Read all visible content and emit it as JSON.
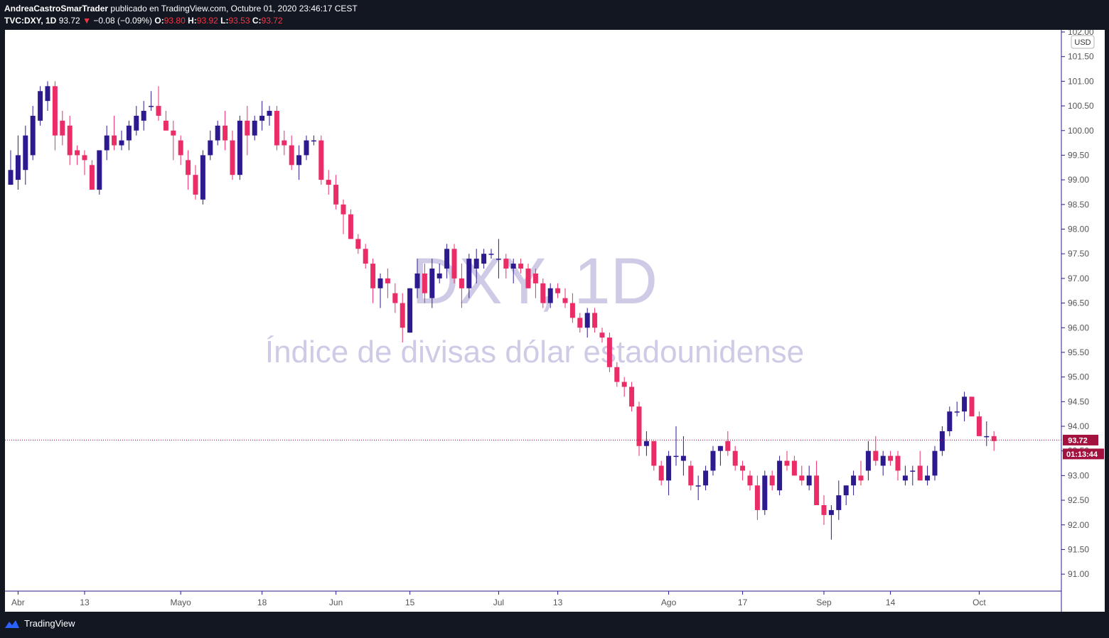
{
  "header": {
    "author": "AndreaCastroSmarTrader",
    "published": "publicado en TradingView.com, Octubre 01, 2020 23:46:17 CEST",
    "symbol": "TVC:DXY, 1D",
    "last": "93.72",
    "change": "−0.08 (−0.09%)",
    "o_label": "O:",
    "o": "93.80",
    "h_label": "H:",
    "h": "93.92",
    "l_label": "L:",
    "l": "93.53",
    "c_label": "C:",
    "c": "93.72"
  },
  "watermark": {
    "line1": "DXY, 1D",
    "line2": "Índice de divisas dólar estadounidense"
  },
  "footer": {
    "brand": "TradingView"
  },
  "price_axis": {
    "currency": "USD",
    "last_price_label": "93.72",
    "countdown": "01:13:44"
  },
  "colors": {
    "up": "#2e1a8f",
    "down": "#ea2d67",
    "watermark": "#cfcbe6",
    "last_price_bg": "#a3123e",
    "accent_line": "#a3123e"
  },
  "chart_data": {
    "type": "candlestick",
    "title": "",
    "ylim": [
      90.8,
      102.0
    ],
    "y_ticks": [
      "91.00",
      "91.50",
      "92.00",
      "92.50",
      "93.00",
      "93.50",
      "94.00",
      "94.50",
      "95.00",
      "95.50",
      "96.00",
      "96.50",
      "97.00",
      "97.50",
      "98.00",
      "98.50",
      "99.00",
      "99.50",
      "100.00",
      "100.50",
      "101.00",
      "101.50",
      "102.00"
    ],
    "x_labels": [
      {
        "i": 1,
        "label": "Abr"
      },
      {
        "i": 10,
        "label": "13"
      },
      {
        "i": 23,
        "label": "Mayo"
      },
      {
        "i": 34,
        "label": "18"
      },
      {
        "i": 44,
        "label": "Jun"
      },
      {
        "i": 54,
        "label": "15"
      },
      {
        "i": 66,
        "label": "Jul"
      },
      {
        "i": 74,
        "label": "13"
      },
      {
        "i": 89,
        "label": "Ago"
      },
      {
        "i": 99,
        "label": "17"
      },
      {
        "i": 110,
        "label": "Sep"
      },
      {
        "i": 119,
        "label": "14"
      },
      {
        "i": 131,
        "label": "Oct"
      }
    ],
    "last_price": 93.72,
    "candles": [
      {
        "o": 98.9,
        "h": 99.6,
        "l": 98.9,
        "c": 99.2
      },
      {
        "o": 99.0,
        "h": 99.9,
        "l": 98.8,
        "c": 99.5
      },
      {
        "o": 99.2,
        "h": 100.1,
        "l": 98.9,
        "c": 99.9
      },
      {
        "o": 99.5,
        "h": 100.5,
        "l": 99.4,
        "c": 100.3
      },
      {
        "o": 100.2,
        "h": 100.9,
        "l": 100.1,
        "c": 100.8
      },
      {
        "o": 100.6,
        "h": 101.0,
        "l": 100.4,
        "c": 100.9
      },
      {
        "o": 100.9,
        "h": 101.0,
        "l": 99.6,
        "c": 99.9
      },
      {
        "o": 100.2,
        "h": 100.4,
        "l": 99.7,
        "c": 99.9
      },
      {
        "o": 100.1,
        "h": 100.3,
        "l": 99.3,
        "c": 99.5
      },
      {
        "o": 99.6,
        "h": 99.7,
        "l": 99.3,
        "c": 99.5
      },
      {
        "o": 99.5,
        "h": 99.6,
        "l": 99.1,
        "c": 99.4
      },
      {
        "o": 99.3,
        "h": 99.4,
        "l": 98.8,
        "c": 98.8
      },
      {
        "o": 98.8,
        "h": 99.6,
        "l": 98.7,
        "c": 99.6
      },
      {
        "o": 99.6,
        "h": 100.1,
        "l": 99.4,
        "c": 99.9
      },
      {
        "o": 99.9,
        "h": 100.3,
        "l": 99.6,
        "c": 99.7
      },
      {
        "o": 99.7,
        "h": 100.0,
        "l": 99.6,
        "c": 99.8
      },
      {
        "o": 99.8,
        "h": 100.2,
        "l": 99.6,
        "c": 100.1
      },
      {
        "o": 100.0,
        "h": 100.5,
        "l": 99.9,
        "c": 100.3
      },
      {
        "o": 100.2,
        "h": 100.6,
        "l": 100.0,
        "c": 100.4
      },
      {
        "o": 100.5,
        "h": 100.8,
        "l": 100.4,
        "c": 100.5
      },
      {
        "o": 100.5,
        "h": 100.9,
        "l": 100.2,
        "c": 100.3
      },
      {
        "o": 100.2,
        "h": 100.4,
        "l": 100.0,
        "c": 100.0
      },
      {
        "o": 100.0,
        "h": 100.2,
        "l": 99.4,
        "c": 99.9
      },
      {
        "o": 99.8,
        "h": 99.9,
        "l": 99.3,
        "c": 99.5
      },
      {
        "o": 99.4,
        "h": 99.6,
        "l": 98.8,
        "c": 99.1
      },
      {
        "o": 99.1,
        "h": 99.3,
        "l": 98.6,
        "c": 98.7
      },
      {
        "o": 98.6,
        "h": 99.6,
        "l": 98.5,
        "c": 99.5
      },
      {
        "o": 99.5,
        "h": 100.0,
        "l": 99.4,
        "c": 99.8
      },
      {
        "o": 99.8,
        "h": 100.2,
        "l": 99.7,
        "c": 100.1
      },
      {
        "o": 100.1,
        "h": 100.4,
        "l": 99.6,
        "c": 99.8
      },
      {
        "o": 99.8,
        "h": 100.0,
        "l": 99.0,
        "c": 99.1
      },
      {
        "o": 99.1,
        "h": 100.3,
        "l": 99.0,
        "c": 100.2
      },
      {
        "o": 100.2,
        "h": 100.5,
        "l": 99.5,
        "c": 99.9
      },
      {
        "o": 99.9,
        "h": 100.3,
        "l": 99.8,
        "c": 100.2
      },
      {
        "o": 100.2,
        "h": 100.6,
        "l": 100.0,
        "c": 100.3
      },
      {
        "o": 100.3,
        "h": 100.5,
        "l": 100.1,
        "c": 100.4
      },
      {
        "o": 100.4,
        "h": 100.5,
        "l": 99.6,
        "c": 99.7
      },
      {
        "o": 99.8,
        "h": 100.0,
        "l": 99.5,
        "c": 99.7
      },
      {
        "o": 99.7,
        "h": 99.9,
        "l": 99.2,
        "c": 99.3
      },
      {
        "o": 99.3,
        "h": 99.7,
        "l": 99.0,
        "c": 99.5
      },
      {
        "o": 99.5,
        "h": 99.9,
        "l": 99.4,
        "c": 99.8
      },
      {
        "o": 99.8,
        "h": 99.9,
        "l": 99.7,
        "c": 99.8
      },
      {
        "o": 99.8,
        "h": 99.9,
        "l": 98.9,
        "c": 99.0
      },
      {
        "o": 99.0,
        "h": 99.2,
        "l": 98.7,
        "c": 98.9
      },
      {
        "o": 98.9,
        "h": 99.1,
        "l": 98.4,
        "c": 98.5
      },
      {
        "o": 98.5,
        "h": 98.6,
        "l": 97.9,
        "c": 98.3
      },
      {
        "o": 98.3,
        "h": 98.4,
        "l": 97.8,
        "c": 97.8
      },
      {
        "o": 97.8,
        "h": 97.9,
        "l": 97.5,
        "c": 97.6
      },
      {
        "o": 97.6,
        "h": 97.7,
        "l": 97.2,
        "c": 97.3
      },
      {
        "o": 97.3,
        "h": 97.4,
        "l": 96.5,
        "c": 96.8
      },
      {
        "o": 96.8,
        "h": 97.1,
        "l": 96.4,
        "c": 97.0
      },
      {
        "o": 97.0,
        "h": 97.2,
        "l": 96.6,
        "c": 96.9
      },
      {
        "o": 96.7,
        "h": 96.9,
        "l": 96.3,
        "c": 96.5
      },
      {
        "o": 96.5,
        "h": 96.7,
        "l": 95.7,
        "c": 96.0
      },
      {
        "o": 95.9,
        "h": 96.8,
        "l": 95.9,
        "c": 96.8
      },
      {
        "o": 96.8,
        "h": 97.4,
        "l": 96.6,
        "c": 97.1
      },
      {
        "o": 97.1,
        "h": 97.3,
        "l": 96.5,
        "c": 96.7
      },
      {
        "o": 96.6,
        "h": 97.4,
        "l": 96.4,
        "c": 97.2
      },
      {
        "o": 97.0,
        "h": 97.3,
        "l": 96.9,
        "c": 97.1
      },
      {
        "o": 97.2,
        "h": 97.7,
        "l": 97.0,
        "c": 97.6
      },
      {
        "o": 97.6,
        "h": 97.7,
        "l": 96.9,
        "c": 97.0
      },
      {
        "o": 97.0,
        "h": 97.3,
        "l": 96.4,
        "c": 96.8
      },
      {
        "o": 96.8,
        "h": 97.5,
        "l": 96.6,
        "c": 97.4
      },
      {
        "o": 97.2,
        "h": 97.6,
        "l": 96.9,
        "c": 97.4
      },
      {
        "o": 97.3,
        "h": 97.6,
        "l": 97.2,
        "c": 97.5
      },
      {
        "o": 97.5,
        "h": 97.6,
        "l": 97.4,
        "c": 97.5
      },
      {
        "o": 97.4,
        "h": 97.8,
        "l": 97.0,
        "c": 97.4
      },
      {
        "o": 97.4,
        "h": 97.5,
        "l": 97.0,
        "c": 97.2
      },
      {
        "o": 97.2,
        "h": 97.4,
        "l": 96.9,
        "c": 97.3
      },
      {
        "o": 97.3,
        "h": 97.4,
        "l": 97.1,
        "c": 97.2
      },
      {
        "o": 97.2,
        "h": 97.3,
        "l": 96.8,
        "c": 96.8
      },
      {
        "o": 97.1,
        "h": 97.2,
        "l": 96.6,
        "c": 96.9
      },
      {
        "o": 96.9,
        "h": 97.0,
        "l": 96.4,
        "c": 96.5
      },
      {
        "o": 96.5,
        "h": 96.9,
        "l": 96.4,
        "c": 96.8
      },
      {
        "o": 96.8,
        "h": 96.9,
        "l": 96.6,
        "c": 96.7
      },
      {
        "o": 96.6,
        "h": 96.8,
        "l": 96.4,
        "c": 96.5
      },
      {
        "o": 96.5,
        "h": 96.7,
        "l": 96.1,
        "c": 96.2
      },
      {
        "o": 96.2,
        "h": 96.3,
        "l": 95.9,
        "c": 96.0
      },
      {
        "o": 96.0,
        "h": 96.4,
        "l": 95.8,
        "c": 96.3
      },
      {
        "o": 96.3,
        "h": 96.4,
        "l": 95.9,
        "c": 96.0
      },
      {
        "o": 95.9,
        "h": 96.0,
        "l": 95.7,
        "c": 95.8
      },
      {
        "o": 95.8,
        "h": 95.9,
        "l": 95.1,
        "c": 95.2
      },
      {
        "o": 95.2,
        "h": 95.3,
        "l": 94.8,
        "c": 94.9
      },
      {
        "o": 94.9,
        "h": 95.0,
        "l": 94.6,
        "c": 94.8
      },
      {
        "o": 94.8,
        "h": 94.9,
        "l": 94.3,
        "c": 94.4
      },
      {
        "o": 94.4,
        "h": 94.5,
        "l": 93.4,
        "c": 93.6
      },
      {
        "o": 93.6,
        "h": 93.9,
        "l": 93.4,
        "c": 93.7
      },
      {
        "o": 93.7,
        "h": 93.7,
        "l": 93.1,
        "c": 93.2
      },
      {
        "o": 93.2,
        "h": 93.3,
        "l": 92.8,
        "c": 92.9
      },
      {
        "o": 92.9,
        "h": 93.5,
        "l": 92.6,
        "c": 93.4
      },
      {
        "o": 93.4,
        "h": 94.0,
        "l": 93.2,
        "c": 93.4
      },
      {
        "o": 93.3,
        "h": 93.8,
        "l": 93.0,
        "c": 93.4
      },
      {
        "o": 93.2,
        "h": 93.3,
        "l": 92.7,
        "c": 92.8
      },
      {
        "o": 92.8,
        "h": 93.0,
        "l": 92.5,
        "c": 92.8
      },
      {
        "o": 92.8,
        "h": 93.2,
        "l": 92.7,
        "c": 93.1
      },
      {
        "o": 93.1,
        "h": 93.6,
        "l": 93.0,
        "c": 93.5
      },
      {
        "o": 93.5,
        "h": 93.6,
        "l": 93.2,
        "c": 93.6
      },
      {
        "o": 93.7,
        "h": 93.9,
        "l": 93.4,
        "c": 93.5
      },
      {
        "o": 93.5,
        "h": 93.6,
        "l": 93.1,
        "c": 93.2
      },
      {
        "o": 93.2,
        "h": 93.3,
        "l": 92.9,
        "c": 93.1
      },
      {
        "o": 93.0,
        "h": 93.1,
        "l": 92.7,
        "c": 92.8
      },
      {
        "o": 92.8,
        "h": 93.0,
        "l": 92.1,
        "c": 92.3
      },
      {
        "o": 92.3,
        "h": 93.1,
        "l": 92.2,
        "c": 93.0
      },
      {
        "o": 93.0,
        "h": 93.1,
        "l": 92.7,
        "c": 92.8
      },
      {
        "o": 92.7,
        "h": 93.4,
        "l": 92.6,
        "c": 93.3
      },
      {
        "o": 93.3,
        "h": 93.5,
        "l": 93.1,
        "c": 93.2
      },
      {
        "o": 93.3,
        "h": 93.4,
        "l": 93.0,
        "c": 93.0
      },
      {
        "o": 93.0,
        "h": 93.2,
        "l": 92.8,
        "c": 92.9
      },
      {
        "o": 92.8,
        "h": 93.2,
        "l": 92.7,
        "c": 93.0
      },
      {
        "o": 93.0,
        "h": 93.3,
        "l": 92.5,
        "c": 92.4
      },
      {
        "o": 92.4,
        "h": 92.6,
        "l": 92.0,
        "c": 92.2
      },
      {
        "o": 92.2,
        "h": 92.4,
        "l": 91.7,
        "c": 92.3
      },
      {
        "o": 92.3,
        "h": 92.9,
        "l": 92.1,
        "c": 92.6
      },
      {
        "o": 92.6,
        "h": 92.8,
        "l": 92.4,
        "c": 92.8
      },
      {
        "o": 92.8,
        "h": 93.1,
        "l": 92.6,
        "c": 93.0
      },
      {
        "o": 93.0,
        "h": 93.3,
        "l": 92.8,
        "c": 92.9
      },
      {
        "o": 93.1,
        "h": 93.7,
        "l": 92.9,
        "c": 93.5
      },
      {
        "o": 93.5,
        "h": 93.8,
        "l": 93.2,
        "c": 93.3
      },
      {
        "o": 93.2,
        "h": 93.5,
        "l": 93.0,
        "c": 93.4
      },
      {
        "o": 93.4,
        "h": 93.5,
        "l": 93.2,
        "c": 93.3
      },
      {
        "o": 93.4,
        "h": 93.5,
        "l": 92.9,
        "c": 93.1
      },
      {
        "o": 92.9,
        "h": 93.2,
        "l": 92.8,
        "c": 93.0
      },
      {
        "o": 93.1,
        "h": 93.2,
        "l": 92.8,
        "c": 93.1
      },
      {
        "o": 93.2,
        "h": 93.5,
        "l": 93.0,
        "c": 92.9
      },
      {
        "o": 92.9,
        "h": 93.2,
        "l": 92.8,
        "c": 93.0
      },
      {
        "o": 93.0,
        "h": 93.6,
        "l": 92.9,
        "c": 93.5
      },
      {
        "o": 93.5,
        "h": 94.0,
        "l": 93.4,
        "c": 93.9
      },
      {
        "o": 93.9,
        "h": 94.4,
        "l": 93.8,
        "c": 94.3
      },
      {
        "o": 94.3,
        "h": 94.5,
        "l": 94.2,
        "c": 94.3
      },
      {
        "o": 94.3,
        "h": 94.7,
        "l": 94.1,
        "c": 94.6
      },
      {
        "o": 94.6,
        "h": 94.6,
        "l": 94.2,
        "c": 94.2
      },
      {
        "o": 94.2,
        "h": 94.3,
        "l": 93.8,
        "c": 93.8
      },
      {
        "o": 93.8,
        "h": 94.1,
        "l": 93.6,
        "c": 93.8
      },
      {
        "o": 93.8,
        "h": 93.9,
        "l": 93.5,
        "c": 93.7
      }
    ]
  }
}
